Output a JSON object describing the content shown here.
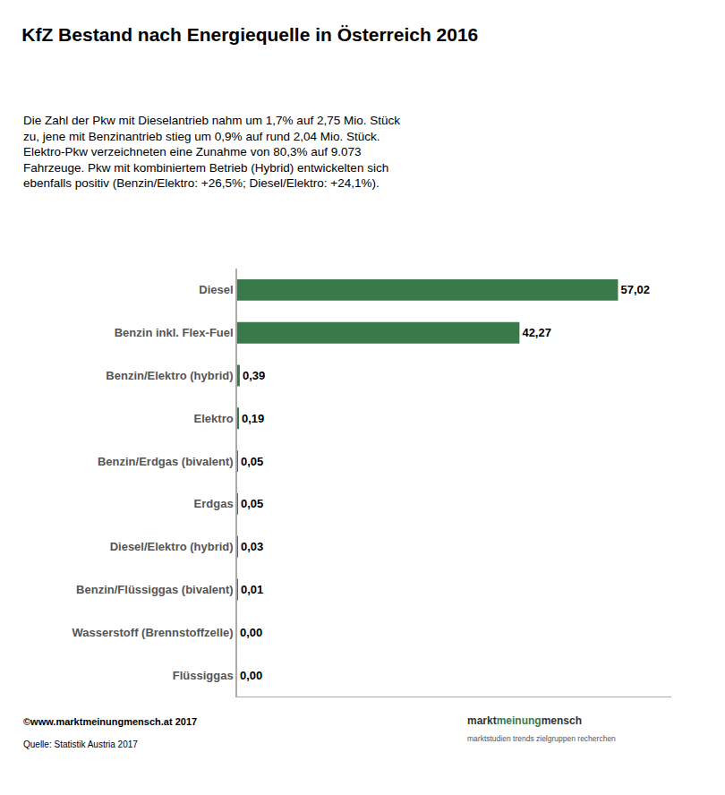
{
  "chart_data": {
    "type": "bar",
    "orientation": "horizontal",
    "title": "KfZ Bestand nach Energiequelle in Österreich 2016",
    "subtitle": "Die Zahl der Pkw mit Dieselantrieb nahm um 1,7% auf 2,75 Mio. Stück\nzu, jene mit Benzinantrieb stieg um 0,9% auf rund 2,04 Mio. Stück.\nElektro-Pkw verzeichneten eine Zunahme von 80,3% auf 9.073\nFahrzeuge. Pkw mit kombiniertem Betrieb (Hybrid) entwickelten sich\nebenfalls positiv (Benzin/Elektro: +26,5%; Diesel/Elektro: +24,1%).",
    "categories": [
      "Diesel",
      "Benzin inkl. Flex-Fuel",
      "Benzin/Elektro (hybrid)",
      "Elektro",
      "Benzin/Erdgas (bivalent)",
      "Erdgas",
      "Diesel/Elektro (hybrid)",
      "Benzin/Flüssiggas (bivalent)",
      "Wasserstoff (Brennstoffzelle)",
      "Flüssiggas"
    ],
    "values": [
      57.02,
      42.27,
      0.39,
      0.19,
      0.05,
      0.05,
      0.03,
      0.01,
      0.0,
      0.0
    ],
    "value_labels": [
      "57,02",
      "42,27",
      "0,39",
      "0,19",
      "0,05",
      "0,05",
      "0,03",
      "0,01",
      "0,00",
      "0,00"
    ],
    "data_labels": true,
    "color": "#3a7a4a",
    "xlim": [
      0,
      65
    ],
    "grid": false,
    "tick_labels": "y",
    "annotations": [
      "©www.marktmeinungmensch.at 2017",
      "Quelle: Statistik Austria 2017",
      "markt",
      "meinung",
      "mensch",
      "marktstudien trends zielgruppen recherchen"
    ]
  }
}
